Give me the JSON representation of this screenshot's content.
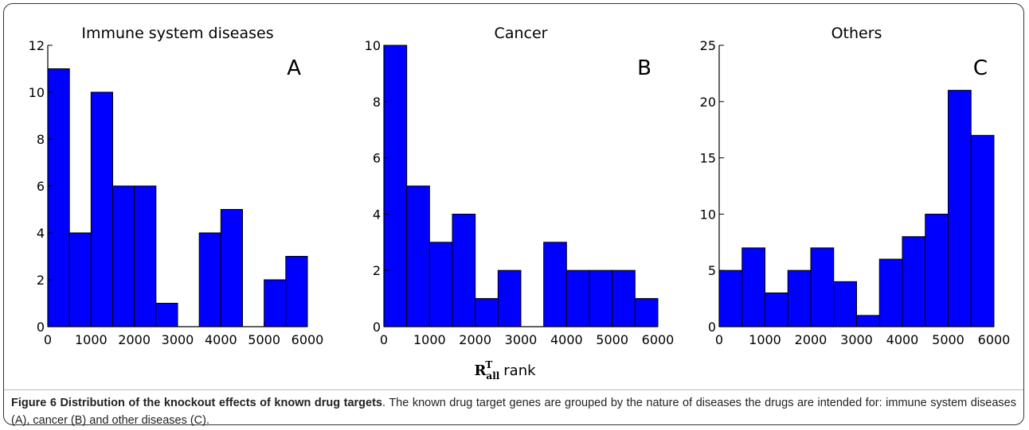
{
  "chart_data": [
    {
      "type": "histogram",
      "title": "Immune system diseases",
      "label": "A",
      "bins": [
        0,
        500,
        1000,
        1500,
        2000,
        2500,
        3000,
        3500,
        4000,
        4500,
        5000,
        5500,
        6000
      ],
      "counts": [
        11,
        4,
        10,
        6,
        6,
        1,
        0,
        4,
        5,
        0,
        2,
        3
      ],
      "color": "#0000ff",
      "xlim": [
        0,
        6000
      ],
      "xticks": [
        0,
        1000,
        2000,
        3000,
        4000,
        5000,
        6000
      ],
      "ylim": [
        0,
        12
      ],
      "yticks": [
        0,
        2,
        4,
        6,
        8,
        10,
        12
      ]
    },
    {
      "type": "histogram",
      "title": "Cancer",
      "label": "B",
      "bins": [
        0,
        500,
        1000,
        1500,
        2000,
        2500,
        3000,
        3500,
        4000,
        4500,
        5000,
        5500,
        6000
      ],
      "counts": [
        10,
        5,
        3,
        4,
        1,
        2,
        0,
        3,
        2,
        2,
        2,
        1
      ],
      "color": "#0000ff",
      "xlim": [
        0,
        6000
      ],
      "xticks": [
        0,
        1000,
        2000,
        3000,
        4000,
        5000,
        6000
      ],
      "ylim": [
        0,
        10
      ],
      "yticks": [
        0,
        2,
        4,
        6,
        8,
        10
      ]
    },
    {
      "type": "histogram",
      "title": "Others",
      "label": "C",
      "bins": [
        0,
        500,
        1000,
        1500,
        2000,
        2500,
        3000,
        3500,
        4000,
        4500,
        5000,
        5500,
        6000
      ],
      "counts": [
        5,
        7,
        3,
        5,
        7,
        4,
        1,
        6,
        8,
        10,
        21,
        17
      ],
      "color": "#0000ff",
      "xlim": [
        0,
        6000
      ],
      "xticks": [
        0,
        1000,
        2000,
        3000,
        4000,
        5000,
        6000
      ],
      "ylim": [
        0,
        25
      ],
      "yticks": [
        0,
        5,
        10,
        15,
        20,
        25
      ]
    }
  ],
  "x_label": {
    "base": "R",
    "sub": "all",
    "sup": "T",
    "rest": "rank"
  },
  "caption": {
    "title": "Figure 6 Distribution of the knockout effects of known drug targets",
    "text": ". The known drug target genes are grouped by the nature of diseases the drugs are intended for: immune system diseases (A), cancer (B) and other diseases (C)."
  }
}
